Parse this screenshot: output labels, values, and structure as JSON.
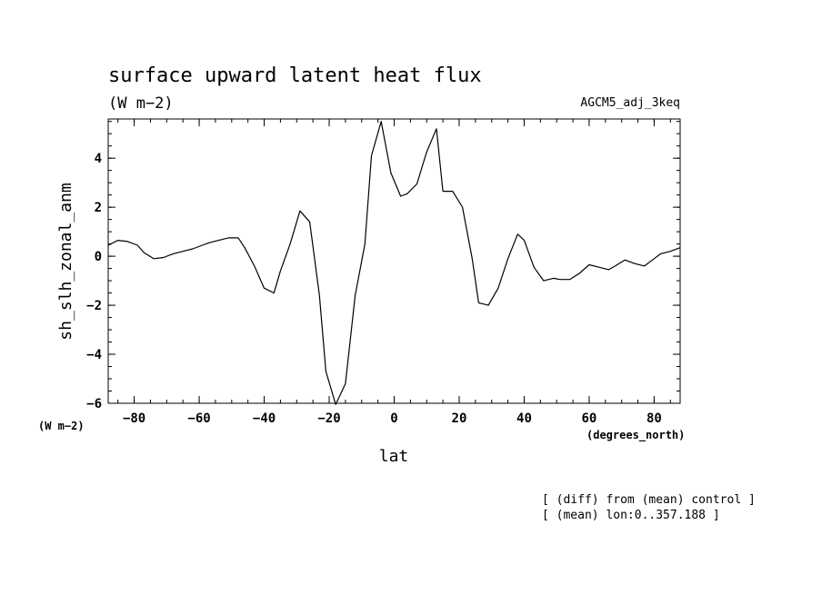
{
  "chart_data": {
    "type": "line",
    "title": "surface upward latent heat flux",
    "units": "(W m−2)",
    "run_label": "AGCM5_adj_3keq",
    "ylabel": "sh_slh_zonal_anm",
    "y_unit_label": "(W m−2)",
    "xlabel": "lat",
    "x_unit_label": "(degrees_north)",
    "notes": [
      "[ (diff) from (mean) control ]",
      "[ (mean) lon:0..357.188 ]"
    ],
    "xlim": [
      -88,
      88
    ],
    "ylim": [
      -6,
      5.6
    ],
    "x_ticks": [
      -80,
      -60,
      -40,
      -20,
      0,
      20,
      40,
      60,
      80
    ],
    "y_ticks": [
      -6,
      -4,
      -2,
      0,
      2,
      4
    ],
    "grid": false,
    "series": [
      {
        "x": [
          -88,
          -85,
          -82,
          -79,
          -77,
          -74,
          -71,
          -68,
          -65,
          -62,
          -59,
          -57,
          -54,
          -51,
          -48,
          -46,
          -43,
          -40,
          -37,
          -35,
          -32,
          -29,
          -26,
          -23,
          -21,
          -18,
          -15,
          -12,
          -9,
          -7,
          -4,
          -1,
          2,
          4,
          7,
          10,
          13,
          15,
          18,
          21,
          24,
          26,
          29,
          32,
          35,
          38,
          40,
          43,
          46,
          49,
          51,
          54,
          57,
          60,
          63,
          66,
          68,
          71,
          74,
          77,
          80,
          82,
          85,
          88
        ],
        "y": [
          0.45,
          0.65,
          0.6,
          0.45,
          0.15,
          -0.1,
          -0.05,
          0.1,
          0.2,
          0.3,
          0.45,
          0.55,
          0.65,
          0.75,
          0.75,
          0.35,
          -0.4,
          -1.3,
          -1.5,
          -0.6,
          0.5,
          1.85,
          1.4,
          -1.6,
          -4.7,
          -6.05,
          -5.2,
          -1.6,
          0.5,
          4.1,
          5.5,
          3.4,
          2.45,
          2.55,
          2.95,
          4.25,
          5.2,
          2.65,
          2.65,
          2.0,
          -0.1,
          -1.9,
          -2.0,
          -1.3,
          -0.1,
          0.9,
          0.65,
          -0.45,
          -1.0,
          -0.9,
          -0.95,
          -0.95,
          -0.7,
          -0.35,
          -0.45,
          -0.55,
          -0.4,
          -0.15,
          -0.3,
          -0.4,
          -0.1,
          0.1,
          0.2,
          0.35
        ]
      }
    ]
  }
}
